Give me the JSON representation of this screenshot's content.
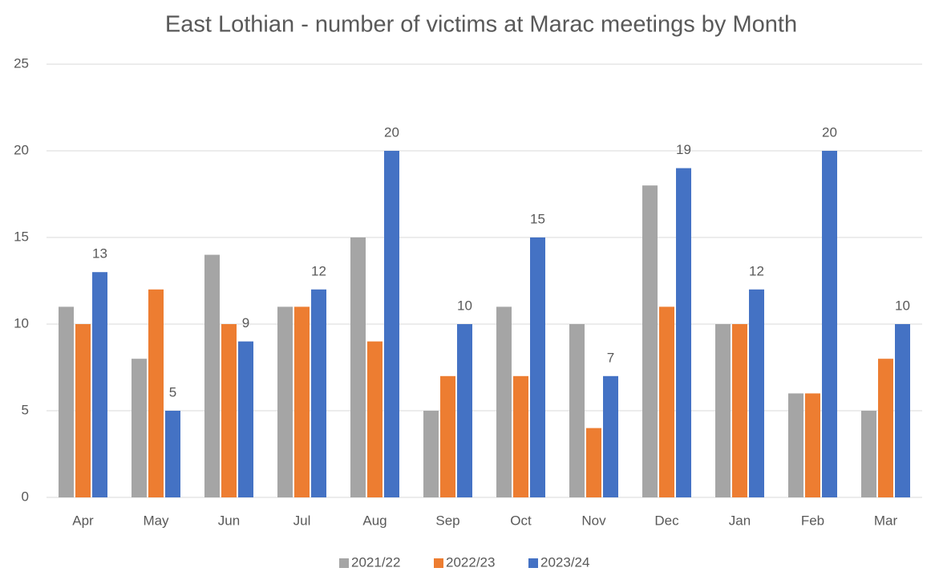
{
  "chart_data": {
    "type": "bar",
    "title": "East Lothian - number of victims at Marac meetings by Month",
    "categories": [
      "Apr",
      "May",
      "Jun",
      "Jul",
      "Aug",
      "Sep",
      "Oct",
      "Nov",
      "Dec",
      "Jan",
      "Feb",
      "Mar"
    ],
    "series": [
      {
        "name": "2021/22",
        "color": "#a5a5a5",
        "show_labels": false,
        "values": [
          11,
          8,
          14,
          11,
          15,
          5,
          11,
          10,
          18,
          10,
          6,
          5
        ]
      },
      {
        "name": "2022/23",
        "color": "#ed7d31",
        "show_labels": false,
        "values": [
          10,
          12,
          10,
          11,
          9,
          7,
          7,
          4,
          11,
          10,
          6,
          8
        ]
      },
      {
        "name": "2023/24",
        "color": "#4472c4",
        "show_labels": true,
        "values": [
          13,
          5,
          9,
          12,
          20,
          10,
          15,
          7,
          19,
          12,
          20,
          10
        ]
      }
    ],
    "ylim": [
      0,
      25
    ],
    "yticks": [
      0,
      5,
      10,
      15,
      20,
      25
    ],
    "grid": true,
    "legend": "bottom"
  }
}
